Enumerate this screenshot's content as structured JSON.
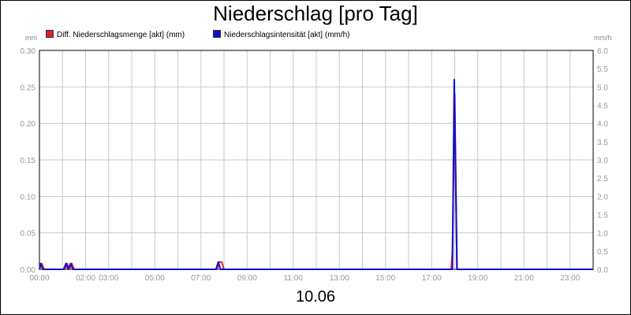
{
  "chart_data": {
    "type": "line",
    "title": "Niederschlag [pro Tag]",
    "xlabel": "10.06",
    "x_ticks": [
      "00:00",
      "02:00",
      "03:00",
      "05:00",
      "07:00",
      "09:00",
      "11:00",
      "13:00",
      "15:00",
      "17:00",
      "19:00",
      "21:00",
      "23:00"
    ],
    "x_range_hours": [
      0,
      24
    ],
    "y_left": {
      "unit": "mm",
      "ylim": [
        0,
        0.3
      ],
      "ticks": [
        "0.00",
        "0.05",
        "0.10",
        "0.15",
        "0.20",
        "0.25",
        "0.30"
      ]
    },
    "y_right": {
      "unit": "mm/h",
      "ylim": [
        0,
        6.0
      ],
      "ticks": [
        "0.0",
        "0.5",
        "1.0",
        "1.5",
        "2.0",
        "2.5",
        "3.0",
        "3.5",
        "4.0",
        "4.5",
        "5.0",
        "5.5",
        "6.0"
      ]
    },
    "grid": true,
    "legend_position": "top-left",
    "series": [
      {
        "name": "Diff. Niederschlagsmenge [akt] (mm)",
        "axis": "left",
        "color": "#e0202a",
        "points": [
          [
            0.0,
            0
          ],
          [
            0.1,
            0.008
          ],
          [
            0.2,
            0
          ],
          [
            1.1,
            0
          ],
          [
            1.2,
            0.008
          ],
          [
            1.3,
            0
          ],
          [
            1.4,
            0.008
          ],
          [
            1.5,
            0
          ],
          [
            7.7,
            0
          ],
          [
            7.8,
            0.01
          ],
          [
            7.9,
            0.01
          ],
          [
            8.0,
            0
          ],
          [
            17.85,
            0
          ],
          [
            17.9,
            0.025
          ],
          [
            18.0,
            0.24
          ],
          [
            18.1,
            0
          ],
          [
            24.0,
            0
          ]
        ]
      },
      {
        "name": "Niederschlagsintensität [akt] (mm/h)",
        "axis": "right",
        "color": "#1010cc",
        "points": [
          [
            0.0,
            0
          ],
          [
            0.05,
            0.16
          ],
          [
            0.15,
            0
          ],
          [
            1.05,
            0
          ],
          [
            1.15,
            0.16
          ],
          [
            1.25,
            0
          ],
          [
            1.35,
            0.16
          ],
          [
            1.45,
            0
          ],
          [
            7.65,
            0
          ],
          [
            7.75,
            0.2
          ],
          [
            7.85,
            0
          ],
          [
            17.9,
            0
          ],
          [
            17.98,
            5.2
          ],
          [
            18.1,
            0
          ],
          [
            24.0,
            0
          ]
        ]
      }
    ]
  }
}
